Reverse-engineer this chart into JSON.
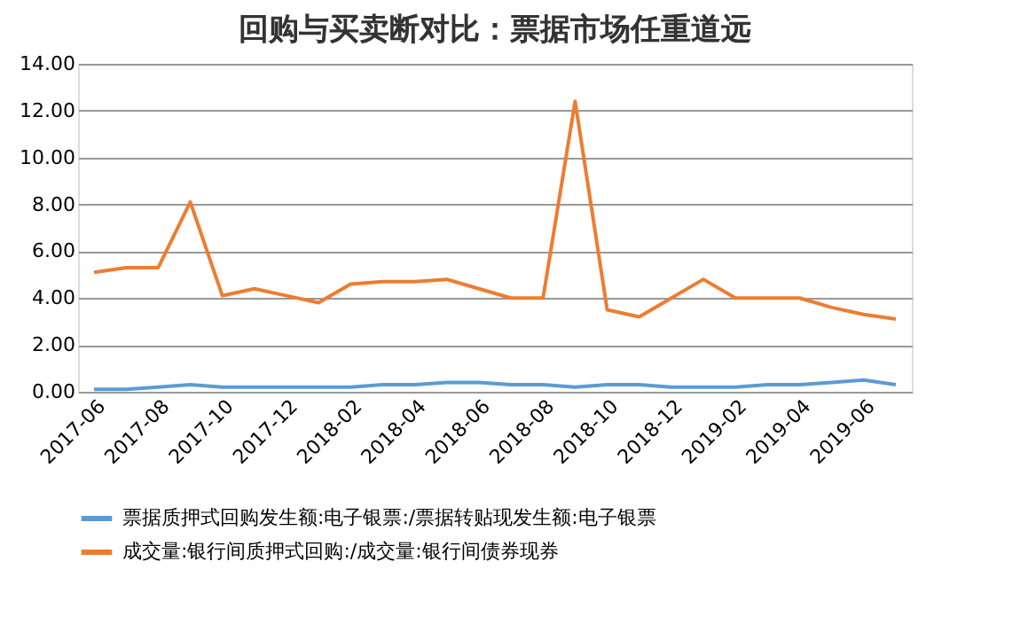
{
  "chart_data": {
    "type": "line",
    "title": "回购与买卖断对比：票据市场任重道远",
    "categories": [
      "2017-06",
      null,
      "2017-08",
      null,
      "2017-10",
      null,
      "2017-12",
      null,
      "2018-02",
      null,
      "2018-04",
      null,
      "2018-06",
      null,
      "2018-08",
      null,
      "2018-10",
      null,
      "2018-12",
      null,
      "2019-02",
      null,
      "2019-04",
      null,
      "2019-06",
      null
    ],
    "series": [
      {
        "name": "票据质押式回购发生额:电子银票:/票据转贴现发生额:电子银票",
        "color": "#5b9bd5",
        "values": [
          0.1,
          0.1,
          0.2,
          0.3,
          0.2,
          0.2,
          0.2,
          0.2,
          0.2,
          0.3,
          0.3,
          0.4,
          0.4,
          0.3,
          0.3,
          0.2,
          0.3,
          0.3,
          0.2,
          0.2,
          0.2,
          0.3,
          0.3,
          0.4,
          0.5,
          0.3
        ]
      },
      {
        "name": "成交量:银行间质押式回购:/成交量:银行间债券现券",
        "color": "#ed7d31",
        "values": [
          5.1,
          5.3,
          5.3,
          8.1,
          4.1,
          4.4,
          4.1,
          3.8,
          4.6,
          4.7,
          4.7,
          4.8,
          4.4,
          4.0,
          4.0,
          12.4,
          3.5,
          3.2,
          4.0,
          4.8,
          4.0,
          4.0,
          4.0,
          3.6,
          3.3,
          3.1
        ]
      }
    ],
    "ylim": [
      0,
      14
    ],
    "yticks": [
      {
        "value": 0,
        "label": "0.00"
      },
      {
        "value": 2,
        "label": "2.00"
      },
      {
        "value": 4,
        "label": "4.00"
      },
      {
        "value": 6,
        "label": "6.00"
      },
      {
        "value": 8,
        "label": "8.00"
      },
      {
        "value": 10,
        "label": "10.00"
      },
      {
        "value": 12,
        "label": "12.00"
      },
      {
        "value": 14,
        "label": "14.00"
      }
    ],
    "grid": "y",
    "legend": "bottom",
    "marker": "none",
    "line_style": "solid"
  }
}
